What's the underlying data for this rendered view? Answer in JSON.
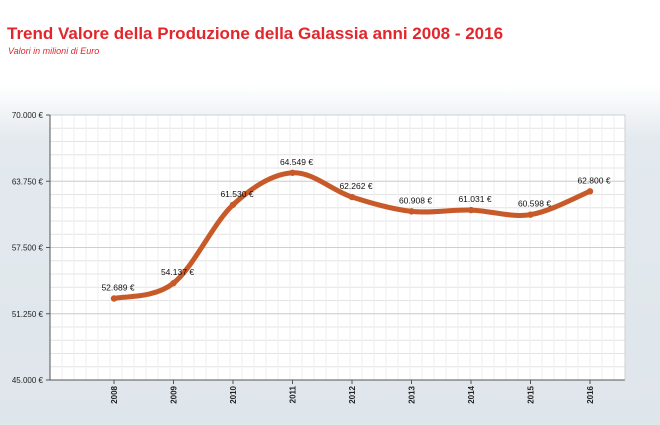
{
  "chart_data": {
    "type": "line",
    "title": "Trend Valore della Produzione della Galassia anni 2008 - 2016",
    "subtitle": "Valori in milioni di Euro",
    "categories": [
      "2008",
      "2009",
      "2010",
      "2011",
      "2012",
      "2013",
      "2014",
      "2015",
      "2016"
    ],
    "values": [
      52689,
      54137,
      61530,
      64549,
      62262,
      60908,
      61031,
      60598,
      62800
    ],
    "data_labels": [
      "52.689 €",
      "54.137 €",
      "61.530 €",
      "64.549 €",
      "62.262 €",
      "60.908 €",
      "61.031 €",
      "60.598 €",
      "62.800 €"
    ],
    "ylim": [
      45000,
      70000
    ],
    "yticks": [
      45000,
      51250,
      57500,
      63750,
      70000
    ],
    "ytick_labels": [
      "45.000 €",
      "51.250 €",
      "57.500 €",
      "63.750 €",
      "70.000 €"
    ],
    "grid": true,
    "line_color": "#c85a2a"
  }
}
